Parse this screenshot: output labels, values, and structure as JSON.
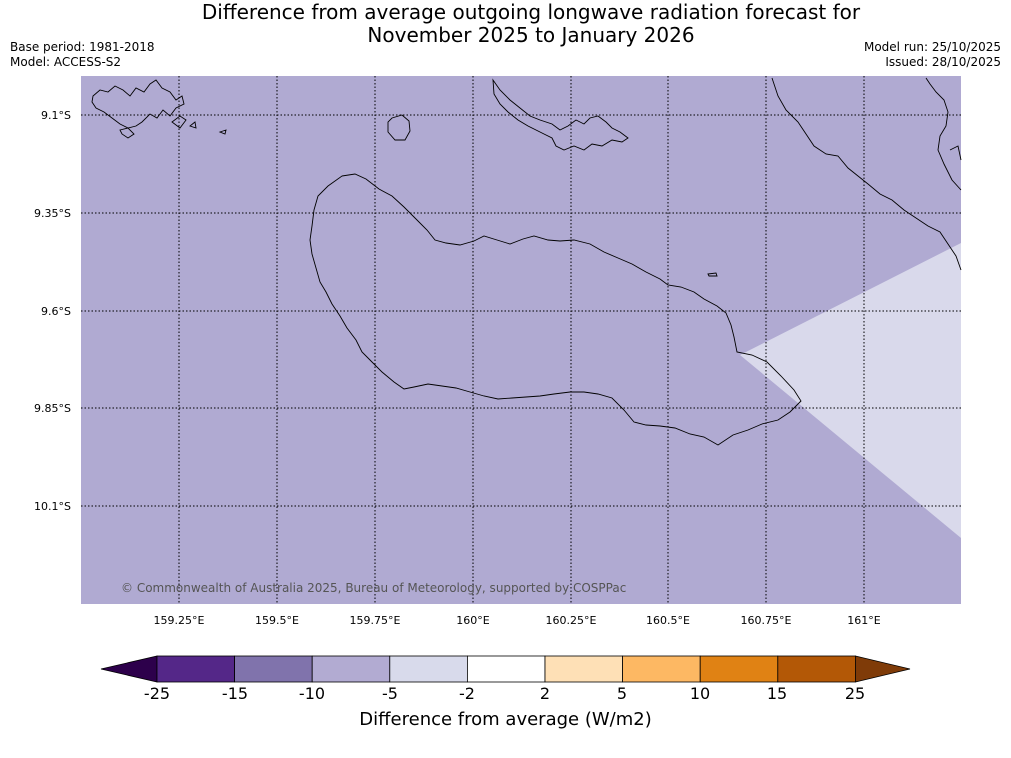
{
  "title_line1": "Difference from average outgoing longwave radiation forecast for",
  "title_line2": "November 2025 to January 2026",
  "meta": {
    "base_period": "Base period: 1981-2018",
    "model": "Model: ACCESS-S2",
    "model_run": "Model run: 25/10/2025",
    "issued": "Issued: 28/10/2025"
  },
  "map": {
    "lat_labels": [
      "9.1°S",
      "9.35°S",
      "9.6°S",
      "9.85°S",
      "10.1°S"
    ],
    "lon_labels": [
      "159.25°E",
      "159.5°E",
      "159.75°E",
      "160°E",
      "160.25°E",
      "160.5°E",
      "160.75°E",
      "161°E"
    ],
    "copyright": "© Commonwealth of Australia 2025, Bureau of Meteorology, supported by COSPPac",
    "main_fill": "#b0aad2",
    "secondary_fill": "#d9d9eb"
  },
  "colorbar": {
    "title": "Difference from average (W/m2)",
    "labels": [
      "-25",
      "-15",
      "-10",
      "-5",
      "-2",
      "2",
      "5",
      "10",
      "15",
      "25"
    ],
    "colors": [
      "#2d004b",
      "#542788",
      "#8073ac",
      "#b2abd2",
      "#d8daeb",
      "#ffffff",
      "#fee0b6",
      "#fdb863",
      "#e08214",
      "#b35806",
      "#7f3b08"
    ]
  }
}
